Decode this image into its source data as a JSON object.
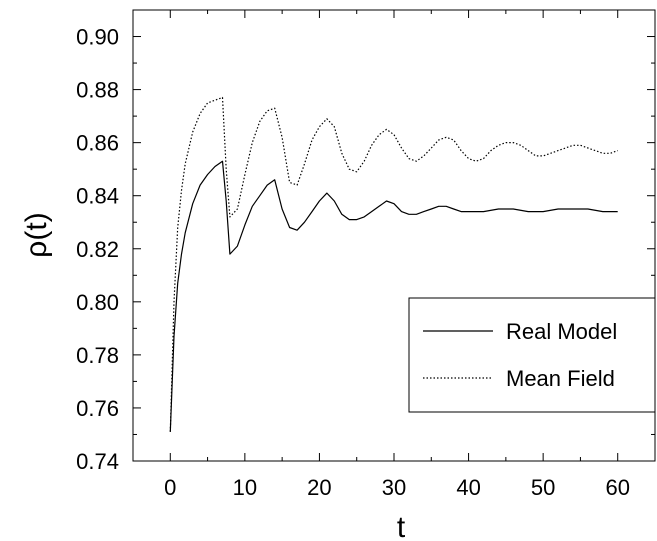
{
  "chart_data": {
    "type": "line",
    "title": "",
    "xlabel": "t",
    "ylabel": "ρ(t)",
    "xlim": [
      -5,
      65
    ],
    "ylim": [
      0.74,
      0.91
    ],
    "xticks": [
      0,
      10,
      20,
      30,
      40,
      50,
      60
    ],
    "xtick_labels": [
      "0",
      "10",
      "20",
      "30",
      "40",
      "50",
      "60"
    ],
    "yticks": [
      0.74,
      0.76,
      0.78,
      0.8,
      0.82,
      0.84,
      0.86,
      0.88,
      0.9
    ],
    "ytick_labels": [
      "0.74",
      "0.76",
      "0.78",
      "0.80",
      "0.82",
      "0.84",
      "0.86",
      "0.88",
      "0.90"
    ],
    "grid": false,
    "legend_position": "lower-right",
    "series": [
      {
        "name": "Real Model",
        "color": "#000000",
        "style": "solid",
        "x": [
          0,
          0.5,
          1,
          1.5,
          2,
          3,
          4,
          5,
          6,
          7,
          7.5,
          8,
          9,
          10,
          11,
          12,
          13,
          14,
          15,
          16,
          17,
          18,
          19,
          20,
          21,
          22,
          23,
          24,
          25,
          26,
          27,
          28,
          29,
          30,
          31,
          32,
          33,
          34,
          35,
          36,
          37,
          38,
          39,
          40,
          42,
          44,
          46,
          48,
          50,
          52,
          54,
          56,
          58,
          60
        ],
        "y": [
          0.751,
          0.787,
          0.807,
          0.818,
          0.826,
          0.837,
          0.844,
          0.848,
          0.851,
          0.853,
          0.838,
          0.818,
          0.821,
          0.829,
          0.836,
          0.84,
          0.844,
          0.846,
          0.835,
          0.828,
          0.827,
          0.83,
          0.834,
          0.838,
          0.841,
          0.838,
          0.833,
          0.831,
          0.831,
          0.832,
          0.834,
          0.836,
          0.838,
          0.837,
          0.834,
          0.833,
          0.833,
          0.834,
          0.835,
          0.836,
          0.836,
          0.835,
          0.834,
          0.834,
          0.834,
          0.835,
          0.835,
          0.834,
          0.834,
          0.835,
          0.835,
          0.835,
          0.834,
          0.834
        ]
      },
      {
        "name": "Mean Field",
        "color": "#000000",
        "style": "dotted",
        "x": [
          0,
          0.5,
          1,
          1.5,
          2,
          3,
          4,
          5,
          6,
          7,
          7.5,
          8,
          9,
          10,
          11,
          12,
          13,
          14,
          15,
          16,
          17,
          18,
          19,
          20,
          21,
          22,
          23,
          24,
          25,
          26,
          27,
          28,
          29,
          30,
          31,
          32,
          33,
          34,
          35,
          36,
          37,
          38,
          39,
          40,
          41,
          42,
          43,
          44,
          45,
          46,
          47,
          48,
          49,
          50,
          51,
          52,
          53,
          54,
          55,
          56,
          57,
          58,
          59,
          60
        ],
        "y": [
          0.751,
          0.8,
          0.828,
          0.842,
          0.852,
          0.864,
          0.871,
          0.875,
          0.876,
          0.877,
          0.85,
          0.832,
          0.835,
          0.848,
          0.86,
          0.868,
          0.872,
          0.873,
          0.862,
          0.845,
          0.844,
          0.852,
          0.861,
          0.866,
          0.869,
          0.866,
          0.856,
          0.85,
          0.849,
          0.853,
          0.859,
          0.863,
          0.865,
          0.863,
          0.858,
          0.854,
          0.853,
          0.855,
          0.858,
          0.861,
          0.862,
          0.861,
          0.857,
          0.854,
          0.853,
          0.854,
          0.857,
          0.859,
          0.86,
          0.86,
          0.859,
          0.857,
          0.855,
          0.855,
          0.856,
          0.857,
          0.858,
          0.859,
          0.859,
          0.858,
          0.857,
          0.856,
          0.856,
          0.857
        ]
      }
    ]
  }
}
